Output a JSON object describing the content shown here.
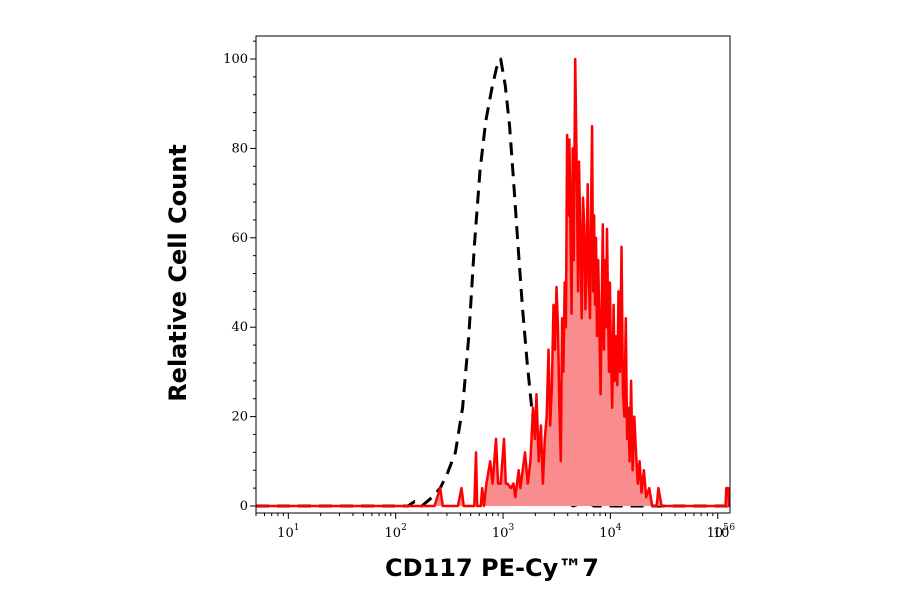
{
  "chart_data": {
    "type": "area",
    "xlabel": "CD117 PE-Cy™7",
    "ylabel": "Relative Cell Count",
    "x_scale": "log",
    "xlim": [
      5,
      130000
    ],
    "ylim": [
      0,
      104
    ],
    "y_ticks": [
      0,
      20,
      40,
      60,
      80,
      100
    ],
    "y_tick_labels": [
      "0",
      "20",
      "40",
      "60",
      "80",
      "100"
    ],
    "x_ticks": [
      {
        "value": 10,
        "base": "10",
        "exp": "1"
      },
      {
        "value": 100,
        "base": "10",
        "exp": "2"
      },
      {
        "value": 1000,
        "base": "10",
        "exp": "3"
      },
      {
        "value": 10000,
        "base": "10",
        "exp": "4"
      },
      {
        "value": 100000,
        "base": "10",
        "exp": "5"
      },
      {
        "value": 1000000,
        "base": "10",
        "exp": "6"
      }
    ],
    "grid": false,
    "legend": "none",
    "series": [
      {
        "style": "dashed",
        "color": "#000000",
        "fill": false,
        "points": [
          [
            5,
            0
          ],
          [
            130,
            0
          ],
          [
            150,
            1
          ],
          [
            175,
            0
          ],
          [
            220,
            2
          ],
          [
            260,
            4
          ],
          [
            300,
            7
          ],
          [
            360,
            12
          ],
          [
            420,
            22
          ],
          [
            480,
            38
          ],
          [
            540,
            58
          ],
          [
            610,
            75
          ],
          [
            690,
            86
          ],
          [
            780,
            93
          ],
          [
            870,
            98
          ],
          [
            950,
            100
          ],
          [
            1050,
            94
          ],
          [
            1150,
            85
          ],
          [
            1260,
            72
          ],
          [
            1380,
            58
          ],
          [
            1520,
            44
          ],
          [
            1680,
            32
          ],
          [
            1850,
            22
          ],
          [
            2050,
            14
          ],
          [
            2300,
            8
          ],
          [
            2600,
            4
          ],
          [
            2900,
            3
          ],
          [
            3300,
            1
          ],
          [
            3800,
            1
          ],
          [
            4500,
            0
          ],
          [
            6000,
            1
          ],
          [
            7000,
            0
          ],
          [
            12000,
            0
          ],
          [
            130000,
            0
          ]
        ]
      },
      {
        "style": "solid",
        "color": "#ff0000",
        "fill": true,
        "fill_color": "#f98c8c",
        "points": [
          [
            5,
            0
          ],
          [
            230,
            0
          ],
          [
            260,
            4
          ],
          [
            275,
            0
          ],
          [
            380,
            0
          ],
          [
            410,
            4
          ],
          [
            430,
            0
          ],
          [
            540,
            0
          ],
          [
            560,
            12
          ],
          [
            575,
            0
          ],
          [
            620,
            0
          ],
          [
            640,
            4
          ],
          [
            665,
            0
          ],
          [
            700,
            5
          ],
          [
            760,
            10
          ],
          [
            800,
            5
          ],
          [
            860,
            15
          ],
          [
            900,
            5
          ],
          [
            950,
            5
          ],
          [
            1020,
            15
          ],
          [
            1060,
            5
          ],
          [
            1100,
            5
          ],
          [
            1180,
            4
          ],
          [
            1250,
            5
          ],
          [
            1300,
            2
          ],
          [
            1400,
            8
          ],
          [
            1450,
            4
          ],
          [
            1600,
            12
          ],
          [
            1700,
            5
          ],
          [
            1800,
            10
          ],
          [
            1900,
            22
          ],
          [
            1980,
            15
          ],
          [
            2050,
            25
          ],
          [
            2150,
            10
          ],
          [
            2250,
            18
          ],
          [
            2350,
            5
          ],
          [
            2450,
            15
          ],
          [
            2550,
            20
          ],
          [
            2650,
            35
          ],
          [
            2750,
            18
          ],
          [
            2850,
            27
          ],
          [
            2950,
            45
          ],
          [
            3050,
            35
          ],
          [
            3150,
            49
          ],
          [
            3250,
            40
          ],
          [
            3350,
            22
          ],
          [
            3450,
            10
          ],
          [
            3550,
            42
          ],
          [
            3650,
            30
          ],
          [
            3750,
            50
          ],
          [
            3850,
            40
          ],
          [
            3950,
            83
          ],
          [
            4050,
            65
          ],
          [
            4150,
            82
          ],
          [
            4250,
            62
          ],
          [
            4350,
            43
          ],
          [
            4450,
            80
          ],
          [
            4550,
            55
          ],
          [
            4700,
            100
          ],
          [
            4850,
            76
          ],
          [
            5000,
            48
          ],
          [
            5100,
            77
          ],
          [
            5250,
            60
          ],
          [
            5400,
            42
          ],
          [
            5550,
            69
          ],
          [
            5700,
            63
          ],
          [
            5850,
            44
          ],
          [
            6000,
            55
          ],
          [
            6150,
            72
          ],
          [
            6300,
            50
          ],
          [
            6450,
            42
          ],
          [
            6600,
            65
          ],
          [
            6750,
            85
          ],
          [
            6900,
            48
          ],
          [
            7050,
            65
          ],
          [
            7200,
            45
          ],
          [
            7350,
            60
          ],
          [
            7500,
            38
          ],
          [
            7700,
            55
          ],
          [
            7900,
            40
          ],
          [
            8100,
            25
          ],
          [
            8300,
            45
          ],
          [
            8500,
            63
          ],
          [
            8700,
            35
          ],
          [
            8900,
            55
          ],
          [
            9100,
            40
          ],
          [
            9300,
            62
          ],
          [
            9500,
            45
          ],
          [
            9700,
            30
          ],
          [
            9900,
            50
          ],
          [
            10100,
            35
          ],
          [
            10400,
            22
          ],
          [
            10700,
            45
          ],
          [
            11000,
            28
          ],
          [
            11300,
            38
          ],
          [
            11600,
            27
          ],
          [
            11900,
            48
          ],
          [
            12300,
            30
          ],
          [
            12700,
            58
          ],
          [
            13100,
            25
          ],
          [
            13500,
            20
          ],
          [
            13900,
            42
          ],
          [
            14300,
            15
          ],
          [
            14700,
            22
          ],
          [
            15100,
            10
          ],
          [
            15600,
            28
          ],
          [
            16100,
            8
          ],
          [
            16700,
            20
          ],
          [
            17300,
            12
          ],
          [
            18000,
            5
          ],
          [
            18700,
            10
          ],
          [
            19500,
            3
          ],
          [
            20500,
            8
          ],
          [
            21500,
            2
          ],
          [
            23000,
            4
          ],
          [
            24500,
            0
          ],
          [
            27000,
            0
          ],
          [
            28000,
            4
          ],
          [
            30000,
            0
          ],
          [
            130000,
            0
          ]
        ]
      },
      {
        "style": "solid",
        "color": "#ff0000",
        "fill": true,
        "fill_color": "#f98c8c",
        "points": [
          [
            118000,
            0
          ],
          [
            120000,
            4
          ],
          [
            125000,
            4
          ],
          [
            127000,
            0
          ]
        ]
      }
    ]
  }
}
